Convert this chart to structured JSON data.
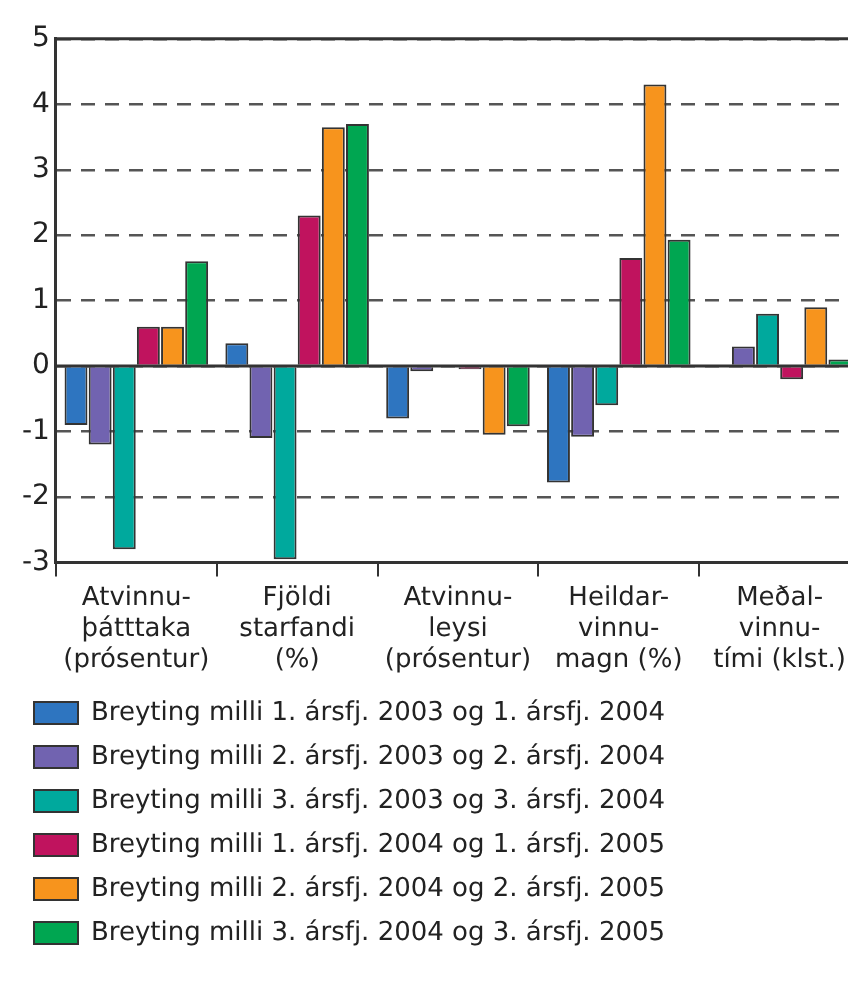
{
  "chart_data": {
    "type": "bar",
    "categories": [
      "Atvinnu-\nþátttaka\n(prósentur)",
      "Fjöldi\nstarfandi\n(%)",
      "Atvinnu-\nleysi\n(prósentur)",
      "Heildar-\nvinnu-\nmagn (%)",
      "Meðal-\nvinnu-\ntími (klst.)"
    ],
    "series": [
      {
        "name": "Breyting milli 1. ársfj. 2003 og 1. ársfj. 2004",
        "color": "#2e75c0",
        "values": [
          -0.9,
          0.35,
          -0.8,
          -1.78,
          0
        ]
      },
      {
        "name": "Breyting milli 2. ársfj. 2003 og 2. ársfj. 2004",
        "color": "#7163b0",
        "values": [
          -1.2,
          -1.1,
          -0.08,
          -1.08,
          0.3
        ]
      },
      {
        "name": "Breyting milli 3. ársfj. 2003 og 3. ársfj. 2004",
        "color": "#00a99d",
        "values": [
          -2.8,
          -2.95,
          0,
          -0.6,
          0.8
        ]
      },
      {
        "name": "Breyting milli 1. ársfj. 2004 og 1. ársfj. 2005",
        "color": "#c0135e",
        "values": [
          0.6,
          2.3,
          -0.05,
          1.65,
          -0.2
        ]
      },
      {
        "name": "Breyting milli 2. ársfj. 2004 og 2. ársfj. 2005",
        "color": "#f7941d",
        "values": [
          0.6,
          3.65,
          -1.05,
          4.3,
          0.9
        ]
      },
      {
        "name": "Breyting milli 3. ársfj. 2004 og 3. ársfj. 2005",
        "color": "#00a651",
        "values": [
          1.6,
          3.7,
          -0.92,
          1.93,
          0.1
        ]
      }
    ],
    "ylim": [
      -3,
      5
    ],
    "yticks": [
      -3,
      -2,
      -1,
      0,
      1,
      2,
      3,
      4,
      5
    ],
    "grid": "y",
    "legend": "bottom"
  }
}
